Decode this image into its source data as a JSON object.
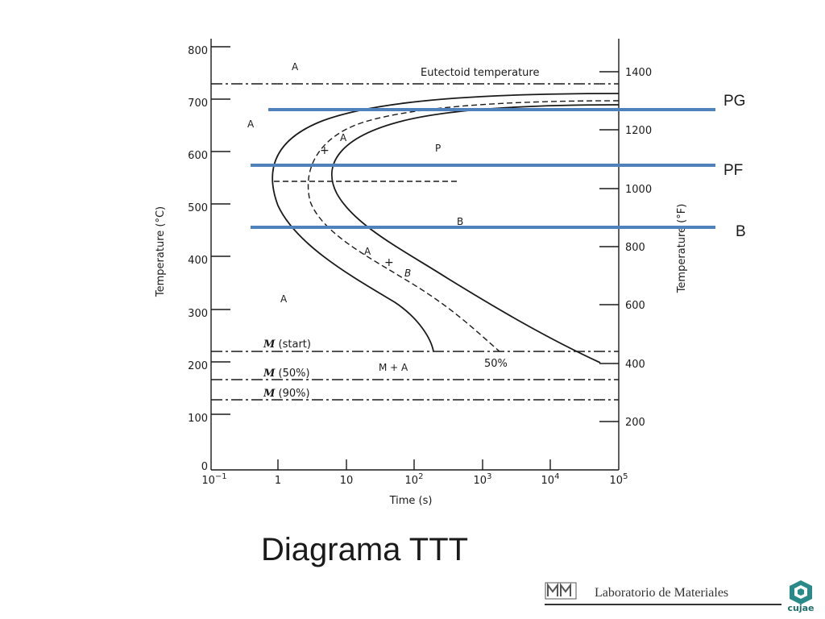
{
  "diagram": {
    "left_axis_label": "Temperature (°C)",
    "right_axis_label": "Temperature (°F)",
    "x_axis_label": "Time (s)",
    "left_ticks": [
      "800",
      "700",
      "600",
      "500",
      "400",
      "300",
      "200",
      "100",
      "0"
    ],
    "right_ticks": [
      "1400",
      "1200",
      "1000",
      "800",
      "600",
      "400",
      "200"
    ],
    "x_ticks": [
      {
        "base": "10",
        "exp": "−1"
      },
      {
        "base": "1",
        "exp": ""
      },
      {
        "base": "10",
        "exp": ""
      },
      {
        "base": "10",
        "exp": "2"
      },
      {
        "base": "10",
        "exp": "3"
      },
      {
        "base": "10",
        "exp": "4"
      },
      {
        "base": "10",
        "exp": "5"
      }
    ],
    "regions": {
      "a_top": "A",
      "a_left": "A",
      "a_mid_upper": "A",
      "a_lower": "A",
      "a_mid_lower": "A",
      "b_mid_lower": "B",
      "plus_upper": "+",
      "plus_lower": "+",
      "p": "P",
      "b_region": "B",
      "m_plus_a": "M  +  A"
    },
    "lines": {
      "eutectoid": "Eutectoid temperature",
      "m_start_sym": "M",
      "m_start_text": "(start)",
      "m_50_sym": "M",
      "m_50_text": "(50%)",
      "m_90_sym": "M",
      "m_90_text": "(90%)",
      "fifty_percent": "50%"
    },
    "markers": [
      "PG",
      "PF",
      "B"
    ],
    "marker_color": "#4f81bd"
  },
  "slide": {
    "title": "Diagrama TTT",
    "lab_name": "Laboratorio de Materiales",
    "cujae": "cujae"
  }
}
